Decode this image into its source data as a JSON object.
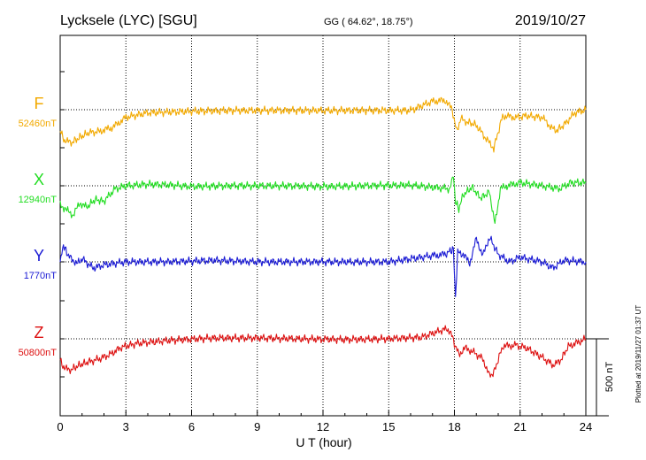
{
  "header": {
    "station": "Lycksele (LYC)  [SGU]",
    "coords": "GG ( 64.62°,  18.75°)",
    "date": "2019/10/27"
  },
  "footer": {
    "plotted": "Plotted at 2019/11/27 01:37 UT"
  },
  "chart_data": {
    "type": "line",
    "xlabel": "U T (hour)",
    "xlim": [
      0,
      24
    ],
    "xticks": [
      "0",
      "3",
      "6",
      "9",
      "12",
      "15",
      "18",
      "21",
      "24"
    ],
    "grid": "dotted vertical lines every 3 hours",
    "scale_bar": {
      "label": "500 nT",
      "nT": 500
    },
    "series": [
      {
        "name": "F",
        "baseline_label": "52460nT",
        "color": "#f2a900",
        "baseline_nT": 52460,
        "x": [
          0,
          0.2,
          0.5,
          0.9,
          1.3,
          1.8,
          2.4,
          3,
          4,
          5,
          6,
          8,
          10,
          12,
          14,
          16,
          17,
          17.6,
          17.9,
          18.1,
          18.3,
          18.6,
          19,
          19.5,
          19.8,
          20.2,
          20.8,
          21.3,
          22,
          22.6,
          23,
          23.5,
          24
        ],
        "y": [
          -140,
          -200,
          -215,
          -180,
          -150,
          -140,
          -115,
          -50,
          -20,
          -15,
          -10,
          -5,
          -5,
          -5,
          -5,
          -5,
          55,
          60,
          0,
          -140,
          -60,
          -80,
          -100,
          -200,
          -250,
          -40,
          -50,
          -40,
          -50,
          -140,
          -100,
          -20,
          0
        ]
      },
      {
        "name": "X",
        "baseline_label": "12940nT",
        "color": "#22dd22",
        "baseline_nT": 12940,
        "x": [
          0,
          0.3,
          0.6,
          0.9,
          1.2,
          1.6,
          2,
          2.5,
          3,
          4,
          5,
          6,
          8,
          10,
          12,
          14,
          16,
          17,
          17.8,
          17.95,
          18.05,
          18.2,
          18.4,
          18.8,
          19.2,
          19.6,
          19.85,
          20.1,
          20.4,
          21,
          22,
          22.8,
          23.3,
          24
        ],
        "y": [
          -120,
          -160,
          -190,
          -110,
          -140,
          -90,
          -100,
          -20,
          0,
          10,
          5,
          -5,
          0,
          0,
          -5,
          0,
          5,
          -10,
          -20,
          80,
          -100,
          -150,
          -60,
          -10,
          -80,
          -40,
          -250,
          -20,
          0,
          20,
          0,
          -20,
          20,
          20
        ]
      },
      {
        "name": "Y",
        "baseline_label": "1770nT",
        "color": "#1a1ad4",
        "baseline_nT": 1770,
        "x": [
          0,
          0.15,
          0.3,
          0.5,
          0.8,
          1,
          1.5,
          2,
          3,
          5,
          7,
          9,
          11,
          13,
          15,
          16,
          17,
          17.6,
          17.8,
          17.95,
          18.05,
          18.15,
          18.4,
          18.7,
          19,
          19.3,
          19.6,
          20,
          20.5,
          21,
          22,
          22.5,
          23,
          24
        ],
        "y": [
          0,
          110,
          60,
          20,
          -10,
          20,
          -40,
          -20,
          0,
          0,
          10,
          0,
          0,
          0,
          0,
          20,
          40,
          50,
          70,
          80,
          -250,
          60,
          50,
          -10,
          150,
          40,
          160,
          50,
          0,
          30,
          0,
          -40,
          10,
          0
        ]
      },
      {
        "name": "Z",
        "baseline_label": "50800nT",
        "color": "#dd1111",
        "baseline_nT": 50800,
        "x": [
          0,
          0.2,
          0.5,
          0.9,
          1.3,
          1.8,
          2.3,
          2.8,
          3.5,
          5,
          7,
          9,
          11,
          13,
          15,
          16.5,
          17.5,
          17.8,
          18,
          18.2,
          18.5,
          18.8,
          19.3,
          19.6,
          19.8,
          20.2,
          20.8,
          21.3,
          22,
          22.5,
          22.8,
          23.2,
          24
        ],
        "y": [
          -140,
          -195,
          -200,
          -170,
          -150,
          -130,
          -100,
          -55,
          -30,
          -10,
          5,
          5,
          0,
          -5,
          0,
          10,
          60,
          55,
          -30,
          -100,
          -60,
          -80,
          -130,
          -240,
          -220,
          -50,
          -40,
          -60,
          -120,
          -170,
          -150,
          -50,
          0
        ]
      }
    ]
  }
}
